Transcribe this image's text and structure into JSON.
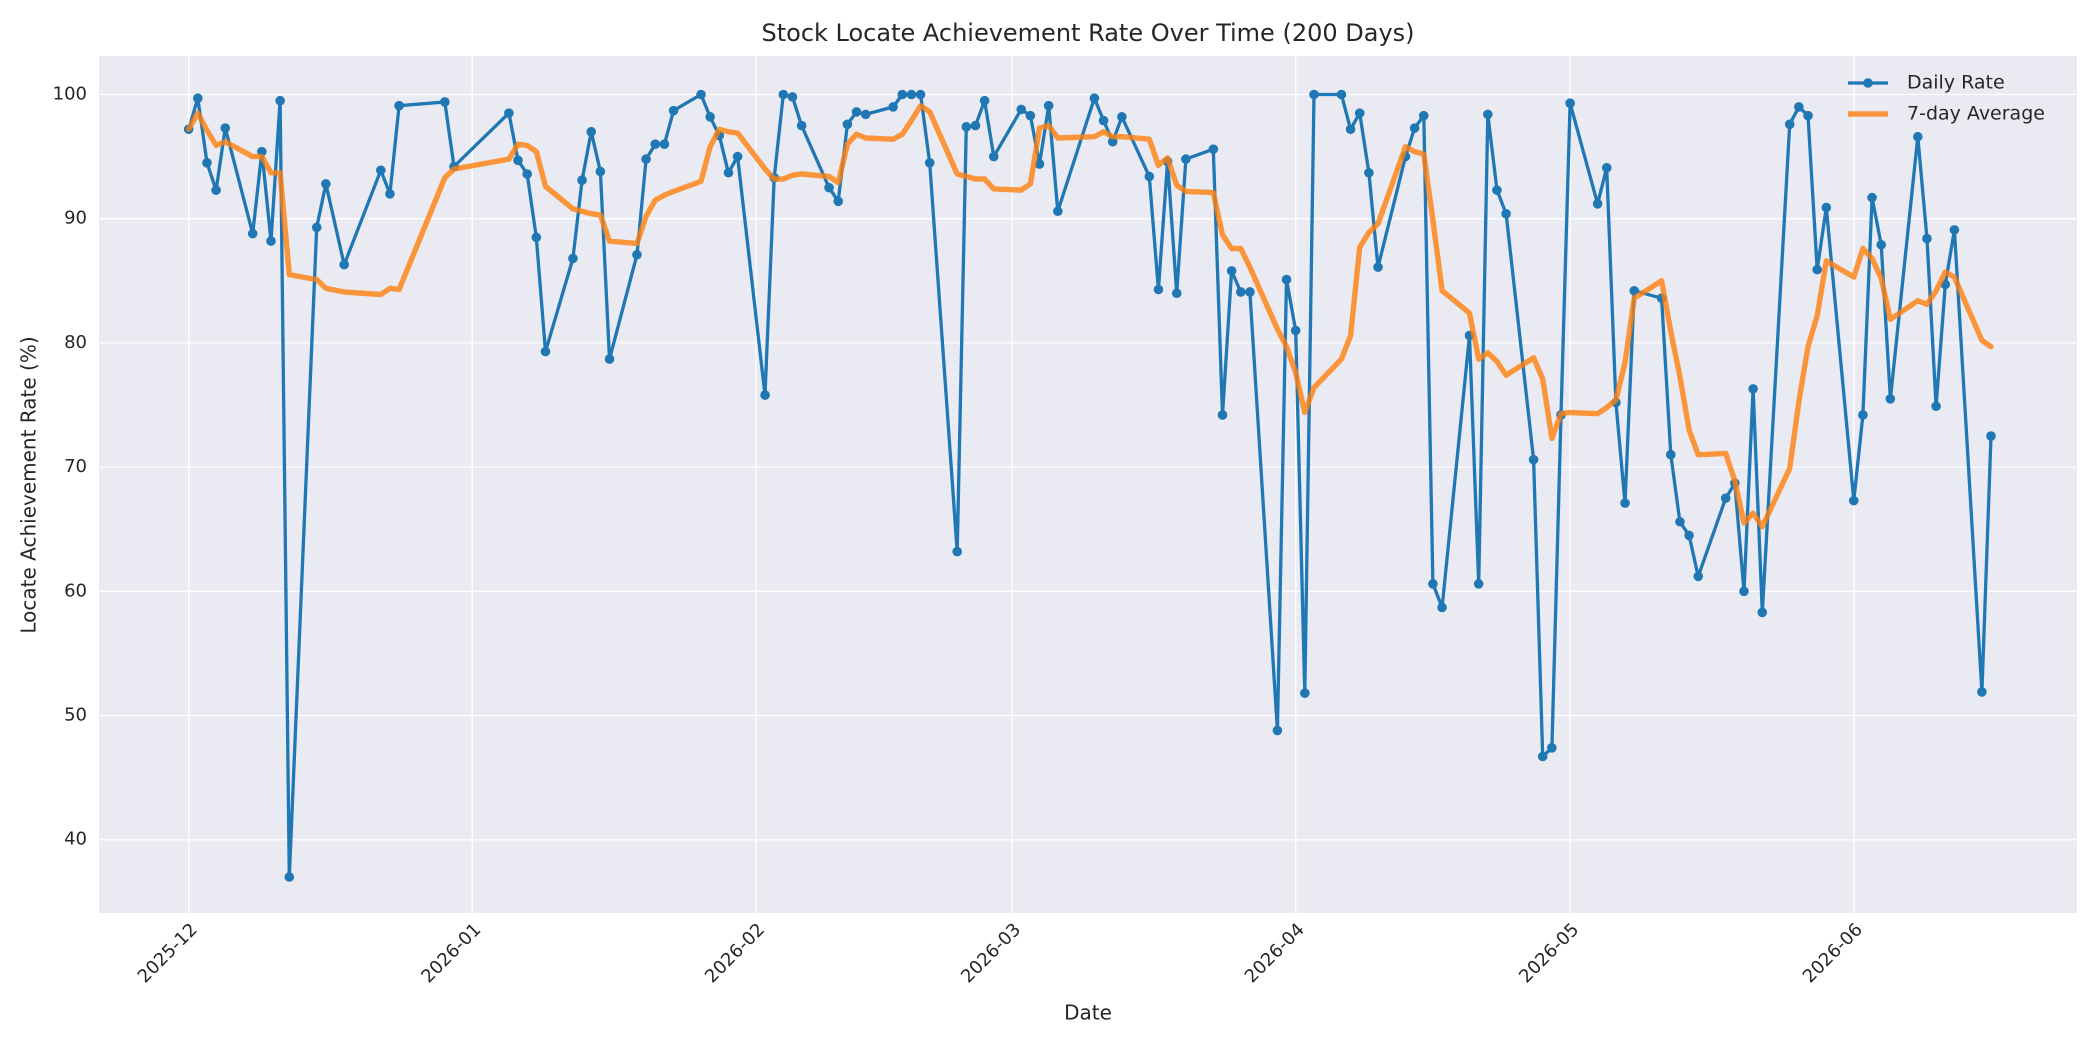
{
  "chart_data": {
    "type": "line",
    "title": "Stock Locate Achievement Rate Over Time (200 Days)",
    "xlabel": "Date",
    "ylabel": "Locate Achievement Rate (%)",
    "x": [
      0,
      1,
      2,
      3,
      4,
      7,
      8,
      9,
      10,
      11,
      14,
      15,
      17,
      21,
      22,
      23,
      28,
      29,
      35,
      36,
      37,
      38,
      39,
      42,
      43,
      44,
      45,
      46,
      49,
      50,
      51,
      52,
      53,
      56,
      57,
      58,
      59,
      60,
      63,
      64,
      65,
      66,
      67,
      70,
      71,
      72,
      73,
      74,
      77,
      78,
      79,
      80,
      81,
      84,
      85,
      86,
      87,
      88,
      91,
      92,
      93,
      94,
      95,
      99,
      100,
      101,
      102,
      105,
      106,
      107,
      108,
      109,
      112,
      113,
      114,
      115,
      116,
      119,
      120,
      121,
      122,
      123,
      126,
      127,
      128,
      129,
      130,
      133,
      134,
      135,
      136,
      137,
      140,
      141,
      142,
      143,
      144,
      147,
      148,
      149,
      150,
      151,
      154,
      155,
      156,
      157,
      158,
      161,
      162,
      163,
      164,
      165,
      168,
      169,
      170,
      171,
      172,
      175,
      176,
      177,
      178,
      179,
      182,
      183,
      184,
      185,
      186,
      189,
      190,
      191,
      192,
      193,
      196,
      197
    ],
    "series": [
      {
        "name": "Daily Rate",
        "color": "#1f77b4",
        "marker": true,
        "values": [
          97.2,
          99.7,
          94.5,
          92.3,
          97.3,
          88.8,
          95.4,
          88.2,
          99.5,
          37.0,
          89.3,
          92.8,
          86.3,
          93.9,
          92.0,
          99.1,
          99.4,
          94.2,
          98.5,
          94.7,
          93.6,
          88.5,
          79.3,
          86.8,
          93.1,
          97.0,
          93.8,
          78.7,
          87.1,
          94.8,
          96.0,
          96.0,
          98.7,
          100.0,
          98.2,
          96.7,
          93.7,
          95.0,
          75.8,
          93.3,
          100.0,
          99.8,
          97.5,
          92.5,
          91.4,
          97.6,
          98.6,
          98.4,
          99.0,
          100.0,
          100.0,
          100.0,
          94.5,
          63.2,
          97.4,
          97.5,
          99.5,
          95.0,
          98.8,
          98.3,
          94.4,
          99.1,
          90.6,
          99.7,
          97.9,
          96.2,
          98.2,
          93.4,
          84.3,
          94.6,
          84.0,
          94.8,
          95.6,
          74.2,
          85.8,
          84.1,
          84.1,
          48.8,
          85.1,
          81.0,
          51.8,
          100.0,
          100.0,
          97.2,
          98.5,
          93.7,
          86.1,
          95.0,
          97.3,
          98.3,
          60.6,
          58.7,
          80.6,
          60.6,
          98.4,
          92.3,
          90.4,
          70.6,
          46.7,
          47.4,
          74.2,
          99.3,
          91.2,
          94.1,
          75.2,
          67.1,
          84.2,
          83.6,
          71.0,
          65.6,
          64.5,
          61.2,
          67.5,
          68.7,
          60.0,
          76.3,
          58.3,
          97.6,
          99.0,
          98.3,
          85.9,
          90.9,
          67.3,
          74.2,
          91.7,
          87.9,
          75.5,
          96.6,
          88.4,
          74.9,
          84.7,
          89.1,
          51.9,
          72.5
        ]
      },
      {
        "name": "7-day Average",
        "color": "#ff7f0e",
        "marker": false,
        "values": [
          97.2,
          98.5,
          97.1,
          95.9,
          96.2,
          95.0,
          95.0,
          93.7,
          93.7,
          85.5,
          85.1,
          84.4,
          84.1,
          83.9,
          84.4,
          84.3,
          93.3,
          94.0,
          94.8,
          96.0,
          95.9,
          95.4,
          92.6,
          90.8,
          90.6,
          90.4,
          90.3,
          88.2,
          88.0,
          90.2,
          91.5,
          91.9,
          92.2,
          93.0,
          95.8,
          97.2,
          97.0,
          96.9,
          94.0,
          93.2,
          93.2,
          93.5,
          93.6,
          93.4,
          92.9,
          96.0,
          96.8,
          96.5,
          96.4,
          96.8,
          97.9,
          99.1,
          98.6,
          93.6,
          93.4,
          93.2,
          93.2,
          92.4,
          92.3,
          92.8,
          97.3,
          97.5,
          96.5,
          96.6,
          97.0,
          96.6,
          96.6,
          96.4,
          94.3,
          94.9,
          92.7,
          92.2,
          92.1,
          88.7,
          87.6,
          87.6,
          86.1,
          81.1,
          79.7,
          77.6,
          74.4,
          76.4,
          78.7,
          80.6,
          87.7,
          88.9,
          89.6,
          95.8,
          95.4,
          95.2,
          89.9,
          84.2,
          82.4,
          78.7,
          79.2,
          78.5,
          77.4,
          78.8,
          77.1,
          72.3,
          74.3,
          74.4,
          74.3,
          74.8,
          75.4,
          78.4,
          83.6,
          85.0,
          80.9,
          77.3,
          73.0,
          71.0,
          71.1,
          68.9,
          65.5,
          66.3,
          65.2,
          69.9,
          75.3,
          79.7,
          82.2,
          86.6,
          85.3,
          87.6,
          86.8,
          85.2,
          81.9,
          83.4,
          83.1,
          84.2,
          85.7,
          85.3,
          80.2,
          79.7
        ]
      }
    ],
    "xlim": [
      -9.8,
      206.4
    ],
    "xticks": [
      {
        "value": 0,
        "label": "2025-12"
      },
      {
        "value": 31,
        "label": "2026-01"
      },
      {
        "value": 62,
        "label": "2026-02"
      },
      {
        "value": 90,
        "label": "2026-03"
      },
      {
        "value": 121,
        "label": "2026-04"
      },
      {
        "value": 151,
        "label": "2026-05"
      },
      {
        "value": 182,
        "label": "2026-06"
      }
    ],
    "ylim": [
      34.1,
      103.1
    ],
    "yticks": [
      40,
      50,
      60,
      70,
      80,
      90,
      100
    ],
    "grid": true,
    "legend": "upper right"
  }
}
